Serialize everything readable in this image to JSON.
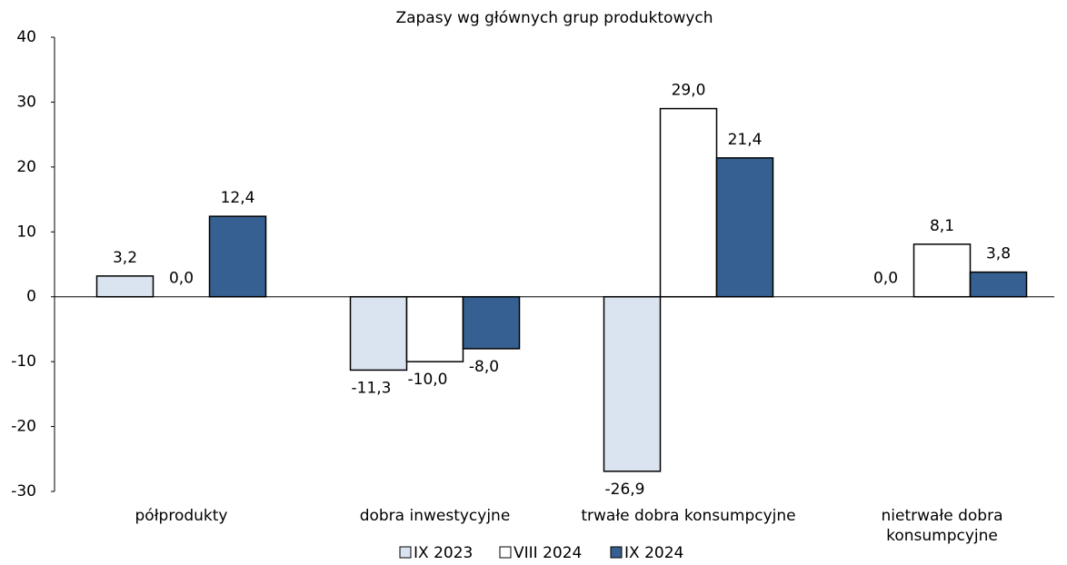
{
  "chart_data": {
    "type": "bar",
    "title": "Zapasy wg głównych grup produktowych",
    "categories": [
      "półprodukty",
      "dobra inwestycyjne",
      "trwałe dobra konsumpcyjne",
      "nietrwałe dobra konsumpcyjne"
    ],
    "series": [
      {
        "name": "IX 2023",
        "color": "#dae3f0",
        "values": [
          3.2,
          -11.3,
          -26.9,
          0.0
        ],
        "value_labels": [
          "3,2",
          "-11,3",
          "-26,9",
          "0,0"
        ]
      },
      {
        "name": "VIII 2024",
        "color": "#ffffff",
        "values": [
          0.0,
          -10.0,
          29.0,
          8.1
        ],
        "value_labels": [
          "0,0",
          "-10,0",
          "29,0",
          "8,1"
        ]
      },
      {
        "name": "IX 2024",
        "color": "#356091",
        "values": [
          12.4,
          -8.0,
          21.4,
          3.8
        ],
        "value_labels": [
          "12,4",
          "-8,0",
          "21,4",
          "3,8"
        ]
      }
    ],
    "ylim": [
      -30,
      40
    ],
    "yticks": [
      -30,
      -20,
      -10,
      0,
      10,
      20,
      30,
      40
    ],
    "legend": "bottom"
  }
}
